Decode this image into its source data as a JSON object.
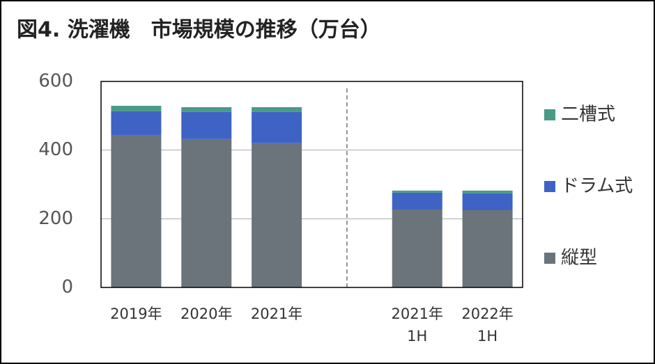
{
  "chart_data": {
    "type": "bar",
    "stacked": true,
    "title": "図4. 洗濯機　市場規模の推移（万台）",
    "categories": [
      "2019年",
      "2020年",
      "2021年",
      null,
      "2021年\n1H",
      "2022年\n1H"
    ],
    "series": [
      {
        "name": "縦型",
        "color": "#6b747a",
        "values": [
          444,
          432,
          420,
          null,
          227,
          225
        ]
      },
      {
        "name": "ドラム式",
        "color": "#3f63c5",
        "values": [
          69,
          79,
          91,
          null,
          49,
          49
        ]
      },
      {
        "name": "二槽式",
        "color": "#4a9a88",
        "values": [
          16,
          14,
          14,
          null,
          6,
          8
        ]
      }
    ],
    "ylim": [
      0,
      600
    ],
    "yticks": [
      0,
      200,
      400,
      600
    ],
    "grid": true,
    "legend": "right"
  }
}
